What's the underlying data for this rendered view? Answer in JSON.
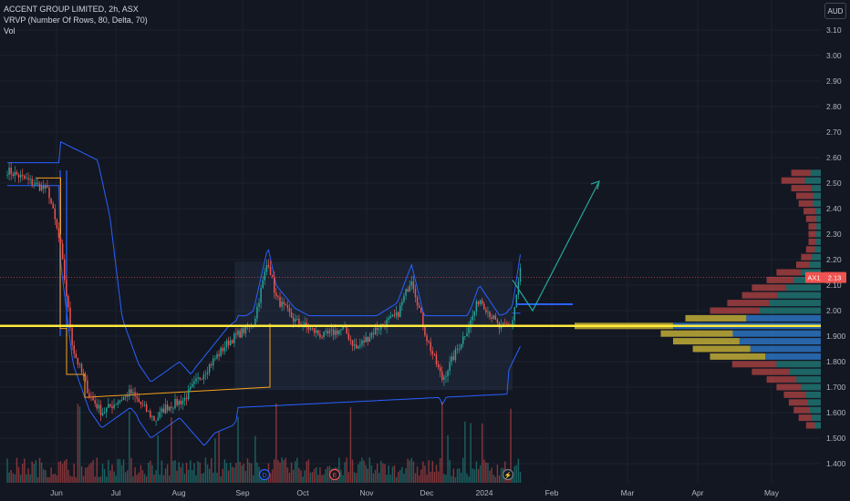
{
  "legend": {
    "title": "ACCENT GROUP LIMITED, 2h, ASX",
    "indicator": "VRVP (Number Of Rows, 80, Delta, 70)",
    "volume": "Vol"
  },
  "currency_button": "AUD",
  "price_badge": {
    "symbol": "AX1",
    "value": "2.13"
  },
  "colors": {
    "background": "#131722",
    "up": "#26a69a",
    "down": "#ef5350",
    "support_line": "#ffeb3b",
    "envelope": "#2962ff",
    "vwap_anchor": "#f7a21b",
    "arrow": "#26a69a",
    "range_box": "#2a3a55"
  },
  "chart_data": {
    "type": "candlestick",
    "title": "ACCENT GROUP LIMITED, 2h, ASX",
    "y_ticks": [
      "3.10",
      "3.00",
      "2.90",
      "2.80",
      "2.70",
      "2.60",
      "2.50",
      "2.40",
      "2.30",
      "2.20",
      "2.10",
      "2.00",
      "1.900",
      "1.800",
      "1.700",
      "1.600",
      "1.500",
      "1.400"
    ],
    "ylim": [
      1.38,
      3.15
    ],
    "x_ticks": [
      "Jun",
      "Jul",
      "Aug",
      "Sep",
      "Oct",
      "Nov",
      "Dec",
      "2024",
      "Feb",
      "Mar",
      "Apr",
      "May"
    ],
    "last_price": 2.13,
    "horizontal_support": 1.94,
    "price_path": {
      "t": [
        0,
        1.0,
        1.3,
        1.6,
        2.0,
        2.3,
        3.0,
        3.6,
        3.85,
        4.0,
        4.3,
        4.6,
        5.0,
        5.4,
        6.0,
        6.35,
        6.55,
        7.0,
        7.7,
        8.2,
        8.5,
        9.0,
        9.5,
        9.85,
        10.2,
        10.6,
        11.0,
        11.3,
        11.5,
        12.0,
        12.3,
        12.5
      ],
      "price": [
        2.55,
        2.47,
        2.25,
        1.85,
        1.67,
        1.6,
        1.68,
        1.57,
        1.62,
        1.63,
        1.65,
        1.72,
        1.8,
        1.88,
        1.95,
        2.2,
        2.05,
        1.96,
        1.9,
        1.93,
        1.85,
        1.93,
        1.98,
        2.13,
        1.9,
        1.73,
        1.86,
        1.96,
        2.05,
        1.93,
        1.95,
        2.16
      ]
    },
    "volume_profile": [
      {
        "price": 2.54,
        "total": 0.12,
        "up_share": 0.35
      },
      {
        "price": 2.51,
        "total": 0.16,
        "up_share": 0.4
      },
      {
        "price": 2.48,
        "total": 0.12,
        "up_share": 0.3
      },
      {
        "price": 2.45,
        "total": 0.1,
        "up_share": 0.3
      },
      {
        "price": 2.42,
        "total": 0.09,
        "up_share": 0.35
      },
      {
        "price": 2.39,
        "total": 0.07,
        "up_share": 0.3
      },
      {
        "price": 2.36,
        "total": 0.06,
        "up_share": 0.3
      },
      {
        "price": 2.33,
        "total": 0.05,
        "up_share": 0.35
      },
      {
        "price": 2.3,
        "total": 0.05,
        "up_share": 0.4
      },
      {
        "price": 2.27,
        "total": 0.05,
        "up_share": 0.4
      },
      {
        "price": 2.24,
        "total": 0.06,
        "up_share": 0.4
      },
      {
        "price": 2.21,
        "total": 0.08,
        "up_share": 0.45
      },
      {
        "price": 2.18,
        "total": 0.1,
        "up_share": 0.45
      },
      {
        "price": 2.15,
        "total": 0.18,
        "up_share": 0.45
      },
      {
        "price": 2.12,
        "total": 0.22,
        "up_share": 0.5
      },
      {
        "price": 2.09,
        "total": 0.28,
        "up_share": 0.5
      },
      {
        "price": 2.06,
        "total": 0.32,
        "up_share": 0.55
      },
      {
        "price": 2.03,
        "total": 0.38,
        "up_share": 0.55
      },
      {
        "price": 2.0,
        "total": 0.45,
        "up_share": 0.55
      },
      {
        "price": 1.97,
        "total": 0.55,
        "up_share": 0.55
      },
      {
        "price": 1.94,
        "total": 1.0,
        "up_share": 0.6
      },
      {
        "price": 1.91,
        "total": 0.65,
        "up_share": 0.55
      },
      {
        "price": 1.88,
        "total": 0.6,
        "up_share": 0.55
      },
      {
        "price": 1.85,
        "total": 0.52,
        "up_share": 0.55
      },
      {
        "price": 1.82,
        "total": 0.45,
        "up_share": 0.5
      },
      {
        "price": 1.79,
        "total": 0.36,
        "up_share": 0.5
      },
      {
        "price": 1.76,
        "total": 0.28,
        "up_share": 0.45
      },
      {
        "price": 1.73,
        "total": 0.22,
        "up_share": 0.45
      },
      {
        "price": 1.7,
        "total": 0.18,
        "up_share": 0.45
      },
      {
        "price": 1.67,
        "total": 0.15,
        "up_share": 0.4
      },
      {
        "price": 1.64,
        "total": 0.13,
        "up_share": 0.4
      },
      {
        "price": 1.61,
        "total": 0.11,
        "up_share": 0.4
      },
      {
        "price": 1.58,
        "total": 0.09,
        "up_share": 0.4
      },
      {
        "price": 1.55,
        "total": 0.06,
        "up_share": 0.4
      }
    ]
  }
}
